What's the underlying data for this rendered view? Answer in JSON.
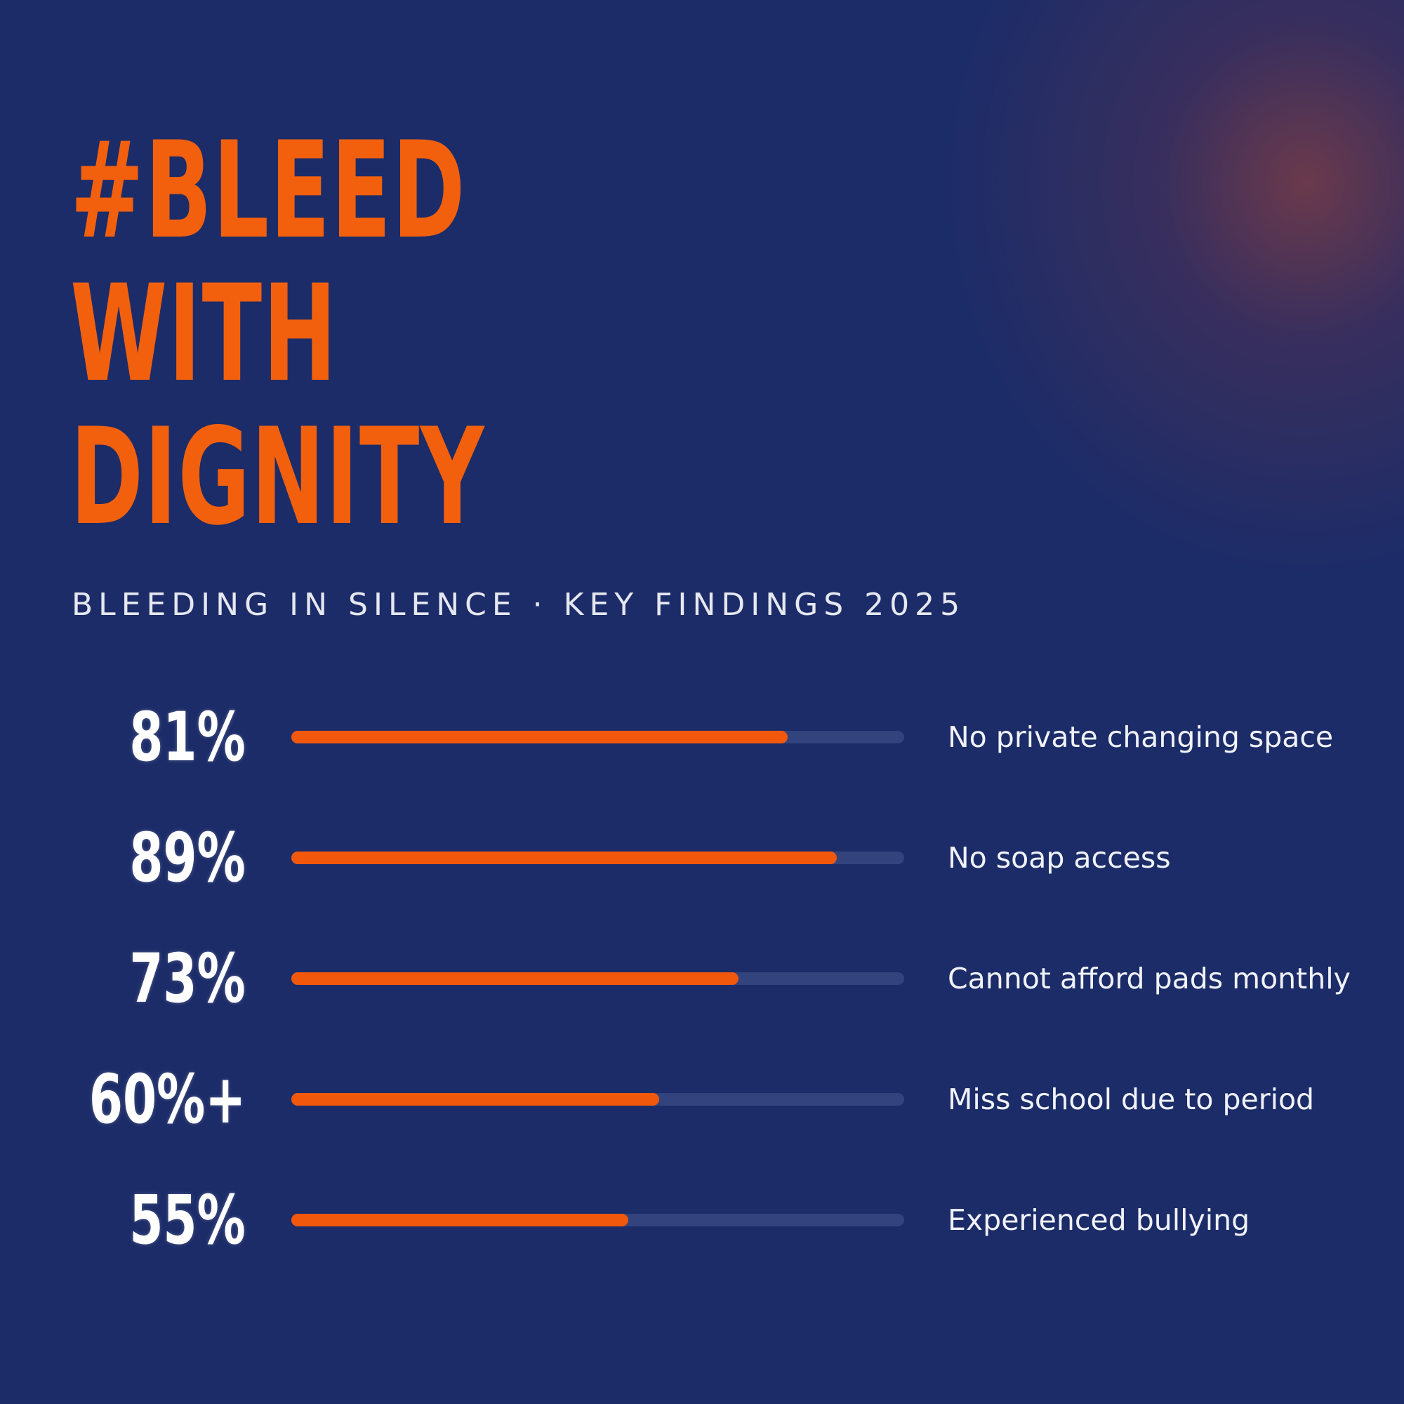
{
  "headline": {
    "lines": [
      "#BLEED",
      "WITH",
      "DIGNITY"
    ]
  },
  "subtitle": "BLEEDING IN SILENCE · KEY FINDINGS 2025",
  "colors": {
    "background": "#1c2c68",
    "accent": "#f2580c",
    "track": "#33437d",
    "text": "#ffffff"
  },
  "chart_data": {
    "type": "bar",
    "orientation": "horizontal",
    "title": "",
    "xlabel": "",
    "ylabel": "",
    "xlim": [
      0,
      100
    ],
    "grid": false,
    "legend": "none",
    "categories": [
      "No private changing space",
      "No soap access",
      "Cannot afford pads monthly",
      "Miss school due to period",
      "Experienced bullying"
    ],
    "values": [
      81,
      89,
      73,
      60,
      55
    ],
    "value_labels": [
      "81%",
      "89%",
      "73%",
      "60%+",
      "55%"
    ]
  }
}
